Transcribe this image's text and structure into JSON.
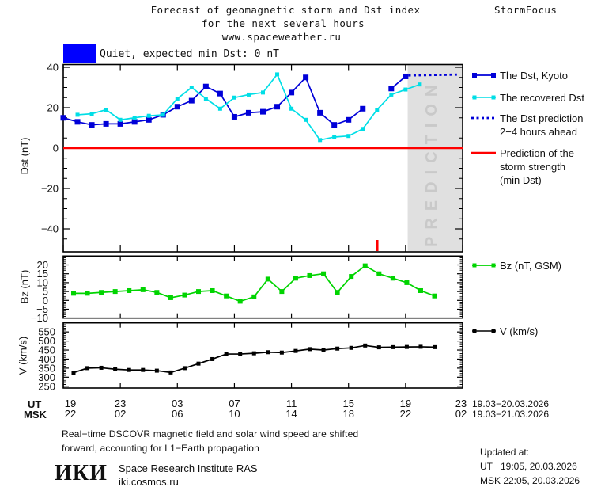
{
  "header": {
    "title_line1": "Forecast of geomagnetic storm and Dst index",
    "title_line2": "for the next several hours",
    "title_line3": "www.spaceweather.ru",
    "brand": "StormFocus"
  },
  "status": {
    "label": "Quiet, expected min Dst: 0 nT",
    "box_color": "#0000ff"
  },
  "legend_main": {
    "kyoto": "The Dst, Kyoto",
    "recovered": "The recovered Dst",
    "prediction_line1": "The Dst prediction",
    "prediction_line2": "2−4 hours ahead",
    "strength_line1": "Prediction of the",
    "strength_line2": "storm strength",
    "strength_line3": "(min Dst)"
  },
  "legend_bz": "Bz (nT, GSM)",
  "legend_v": "V (km/s)",
  "axis_titles": {
    "dst": "Dst (nT)",
    "bz": "Bz (nT)",
    "v": "V (km/s)"
  },
  "xaxis": {
    "tick_hours": [
      0,
      4,
      8,
      12,
      16,
      20,
      24,
      28
    ],
    "ut_prefix": "UT",
    "msk_prefix": "MSK",
    "ut_labels": [
      "19",
      "23",
      "03",
      "07",
      "11",
      "15",
      "19",
      "23"
    ],
    "msk_labels": [
      "22",
      "02",
      "06",
      "10",
      "14",
      "18",
      "22",
      "02"
    ],
    "ut_daterange": "19.03−20.03.2026",
    "msk_daterange": "19.03−21.03.2026"
  },
  "chart_data": [
    {
      "type": "line",
      "name": "dst",
      "ylabel": "Dst (nT)",
      "ylim": [
        -51.4,
        41.4
      ],
      "yticks": [
        40,
        20,
        0,
        -20,
        -40
      ],
      "ytick_labels": [
        "40",
        "20",
        "0",
        "−20",
        "−40"
      ],
      "yminor_step": 5,
      "x_hours_span": 28,
      "series": [
        {
          "name": "The Dst, Kyoto",
          "color": "#0000d8",
          "marker": "square",
          "marker_size": 7,
          "x_start": 0,
          "x_step": 1,
          "y": [
            15,
            13,
            11.5,
            12,
            12,
            13,
            14,
            16.5,
            20.5,
            23.5,
            30.5,
            27,
            15.5,
            17.5,
            18,
            20.5,
            27.5,
            35,
            17.5,
            11.5,
            14,
            19.5,
            null,
            29.5,
            35.5
          ]
        },
        {
          "name": "The recovered Dst",
          "color": "#00dee6",
          "marker": "square",
          "marker_size": 5,
          "x_start": 1,
          "x_step": 1,
          "y": [
            16.5,
            17,
            19,
            14,
            15,
            16,
            16.5,
            24.5,
            30,
            24.5,
            19.5,
            25,
            26.5,
            27.5,
            36.5,
            19.5,
            14,
            4,
            5.5,
            6,
            9.5,
            19,
            26.5,
            29,
            31.5
          ]
        },
        {
          "name": "The Dst prediction 2−4 hours ahead",
          "color": "#0000d8",
          "style": "dotted",
          "x": [
            24.2,
            27.6
          ],
          "y": [
            36,
            36.4
          ]
        },
        {
          "name": "Prediction of the storm strength (min Dst)",
          "color": "#ff0000",
          "style": "hline",
          "y0": 0
        }
      ],
      "prediction_region": {
        "from_hour": 24.15,
        "to_hour": 28,
        "label": "PREDICTION"
      },
      "now_marker_hour": 22
    },
    {
      "type": "line",
      "name": "bz",
      "ylabel": "Bz (nT)",
      "ylim": [
        -10,
        25
      ],
      "yticks": [
        20,
        15,
        10,
        5,
        0,
        -5,
        -10
      ],
      "ytick_labels": [
        "20",
        "15",
        "10",
        "5",
        "0",
        "−5",
        "−10"
      ],
      "yminor_step": 1,
      "series": [
        {
          "name": "Bz (nT, GSM)",
          "color": "#00d400",
          "marker": "square",
          "marker_size": 6,
          "x_start": 0.72,
          "x_step": 0.9736,
          "y": [
            4,
            4,
            4.5,
            5,
            5.5,
            6,
            4.5,
            1.5,
            3,
            5,
            5.5,
            2.5,
            -0.5,
            2,
            12,
            5,
            12.5,
            14,
            15,
            4.5,
            13.5,
            19.5,
            15,
            12.5,
            10,
            5.5,
            2.5
          ]
        }
      ]
    },
    {
      "type": "line",
      "name": "v",
      "ylabel": "V (km/s)",
      "ylim": [
        242,
        598
      ],
      "yticks": [
        550,
        500,
        450,
        400,
        350,
        300,
        250
      ],
      "ytick_labels": [
        "550",
        "500",
        "450",
        "400",
        "350",
        "300",
        "250"
      ],
      "yminor_step": 10,
      "series": [
        {
          "name": "V (km/s)",
          "color": "#000000",
          "marker": "square",
          "marker_size": 5,
          "x_start": 0.72,
          "x_step": 0.9736,
          "y": [
            325,
            350,
            352,
            344,
            340,
            340,
            336,
            326,
            350,
            375,
            400,
            428,
            428,
            432,
            438,
            436,
            445,
            455,
            450,
            458,
            462,
            475,
            465,
            466,
            467,
            468,
            466
          ]
        }
      ]
    }
  ],
  "footer": {
    "line1": "Real−time DSCOVR magnetic field and solar wind speed are shifted",
    "line2": "forward, accounting for L1−Earth propagation",
    "logo": "ИКИ",
    "institute": "Space Research Institute RAS",
    "site": "iki.cosmos.ru",
    "updated_label": "Updated at:",
    "updated_ut": "UT   19:05, 20.03.2026",
    "updated_msk": "MSK 22:05, 20.03.2026"
  },
  "colors": {
    "dst_kyoto": "#0000d8",
    "recovered_dst": "#00dee6",
    "bz": "#00d400",
    "v": "#000000",
    "storm_strength": "#ff0000",
    "prediction_band": "#e0e0e0",
    "prediction_watermark": "#c9c9c9",
    "status_box": "#0000ff"
  }
}
